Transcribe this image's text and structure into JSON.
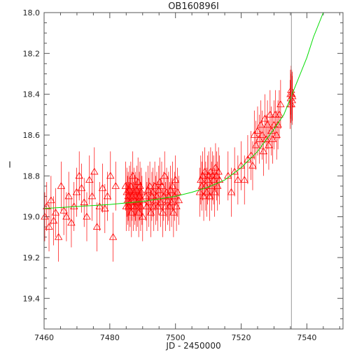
{
  "chart_data": {
    "type": "scatter",
    "title": "OB160896I",
    "xlabel": "JD - 2450000",
    "ylabel": "I",
    "xlim": [
      7460,
      7551
    ],
    "ylim": [
      19.55,
      18.0
    ],
    "y_axis_inverted": true,
    "x_ticks": [
      7460,
      7480,
      7500,
      7520,
      7540
    ],
    "y_ticks": [
      18.0,
      18.2,
      18.4,
      18.6,
      18.8,
      19.0,
      19.2,
      19.4
    ],
    "x_tick_labels": [
      "7460",
      "7480",
      "7500",
      "7520",
      "7540"
    ],
    "y_tick_labels": [
      "18.0",
      "18.2",
      "18.4",
      "18.6",
      "18.8",
      "19.0",
      "19.2",
      "19.4"
    ],
    "grid": false,
    "colors": {
      "points": "#ff0000",
      "model": "#00dd00",
      "marker_line": "#999999",
      "axes": "#555555"
    },
    "vertical_line_x": 7535.3,
    "model_curve": {
      "x": [
        7460,
        7470,
        7480,
        7490,
        7500,
        7505,
        7510,
        7515,
        7520,
        7525,
        7530,
        7533,
        7535,
        7538,
        7540,
        7542,
        7545
      ],
      "y": [
        18.96,
        18.95,
        18.94,
        18.925,
        18.9,
        18.88,
        18.855,
        18.82,
        18.76,
        18.68,
        18.57,
        18.5,
        18.42,
        18.3,
        18.22,
        18.12,
        17.98
      ]
    },
    "series": [
      {
        "marker": "triangle",
        "x": [
          7460.2,
          7460.8,
          7461.5,
          7462.1,
          7462.9,
          7463.5,
          7464.4,
          7465.2,
          7466.0,
          7466.8,
          7467.5,
          7468.3,
          7469.1,
          7469.9,
          7470.7,
          7471.4,
          7472.2,
          7473.0,
          7473.8,
          7474.6,
          7475.3,
          7476.1,
          7476.9,
          7477.8,
          7478.5,
          7479.3,
          7480.2,
          7481.0,
          7481.8,
          7484.8,
          7485.0,
          7485.2,
          7485.4,
          7485.6,
          7485.8,
          7486.0,
          7486.2,
          7486.4,
          7486.6,
          7486.8,
          7487.0,
          7487.2,
          7487.4,
          7487.6,
          7487.8,
          7488.0,
          7488.2,
          7488.4,
          7488.6,
          7488.8,
          7489.0,
          7489.2,
          7489.4,
          7489.6,
          7489.8,
          7490.0,
          7491.0,
          7491.3,
          7491.6,
          7491.9,
          7492.2,
          7492.5,
          7492.8,
          7493.1,
          7493.4,
          7493.7,
          7494.0,
          7494.3,
          7494.6,
          7494.9,
          7495.2,
          7495.5,
          7495.8,
          7496.1,
          7496.4,
          7496.7,
          7497.0,
          7497.3,
          7497.6,
          7497.9,
          7498.2,
          7498.5,
          7498.8,
          7499.1,
          7499.4,
          7499.7,
          7500.0,
          7500.3,
          7500.6,
          7501.0,
          7507.4,
          7507.7,
          7508.0,
          7508.3,
          7508.6,
          7508.9,
          7509.2,
          7509.5,
          7509.8,
          7510.1,
          7510.4,
          7510.7,
          7511.0,
          7511.3,
          7511.6,
          7511.9,
          7512.2,
          7512.5,
          7512.8,
          7513.1,
          7513.4,
          7516.0,
          7517.0,
          7518.0,
          7519.0,
          7520.0,
          7521.0,
          7522.0,
          7523.0,
          7523.5,
          7524.0,
          7524.5,
          7525.0,
          7525.5,
          7526.0,
          7526.4,
          7526.8,
          7527.2,
          7527.6,
          7528.0,
          7528.4,
          7528.8,
          7529.2,
          7529.6,
          7530.0,
          7530.4,
          7530.8,
          7531.2,
          7531.6,
          7532.0,
          7534.9,
          7535.0,
          7535.1,
          7535.2,
          7535.3,
          7535.4,
          7535.5,
          7535.6
        ],
        "y": [
          19.0,
          18.95,
          19.05,
          18.92,
          19.02,
          18.98,
          19.1,
          18.85,
          18.97,
          19.0,
          18.9,
          19.03,
          18.95,
          18.88,
          18.8,
          18.86,
          18.93,
          19.0,
          18.82,
          18.9,
          18.78,
          19.05,
          18.95,
          18.86,
          18.96,
          18.9,
          18.8,
          19.1,
          18.85,
          18.85,
          18.95,
          18.88,
          18.92,
          18.9,
          18.95,
          18.87,
          18.93,
          18.85,
          18.98,
          18.9,
          18.8,
          18.95,
          18.88,
          18.92,
          18.9,
          18.95,
          18.87,
          18.93,
          18.83,
          18.98,
          18.9,
          18.85,
          18.95,
          18.88,
          18.92,
          19.0,
          18.9,
          18.95,
          18.87,
          18.93,
          18.85,
          18.98,
          18.9,
          18.88,
          18.95,
          18.85,
          18.92,
          18.9,
          18.95,
          18.87,
          18.83,
          18.93,
          18.85,
          18.98,
          18.9,
          18.8,
          18.95,
          18.88,
          18.92,
          18.9,
          18.95,
          18.87,
          18.93,
          18.85,
          18.98,
          18.9,
          18.82,
          18.95,
          18.88,
          18.92,
          18.88,
          18.82,
          18.85,
          18.8,
          18.9,
          18.78,
          18.85,
          18.88,
          18.82,
          18.8,
          18.9,
          18.78,
          18.85,
          18.8,
          18.82,
          18.88,
          18.76,
          18.8,
          18.85,
          18.78,
          18.82,
          18.8,
          18.88,
          18.78,
          18.82,
          18.75,
          18.82,
          18.72,
          18.7,
          18.75,
          18.6,
          18.65,
          18.58,
          18.62,
          18.55,
          18.6,
          18.68,
          18.52,
          18.62,
          18.55,
          18.65,
          18.5,
          18.58,
          18.62,
          18.55,
          18.5,
          18.6,
          18.55,
          18.5,
          18.45,
          18.45,
          18.4,
          18.42,
          18.38,
          18.45,
          18.4,
          18.43,
          18.41
        ],
        "y_err": 0.12
      }
    ]
  }
}
